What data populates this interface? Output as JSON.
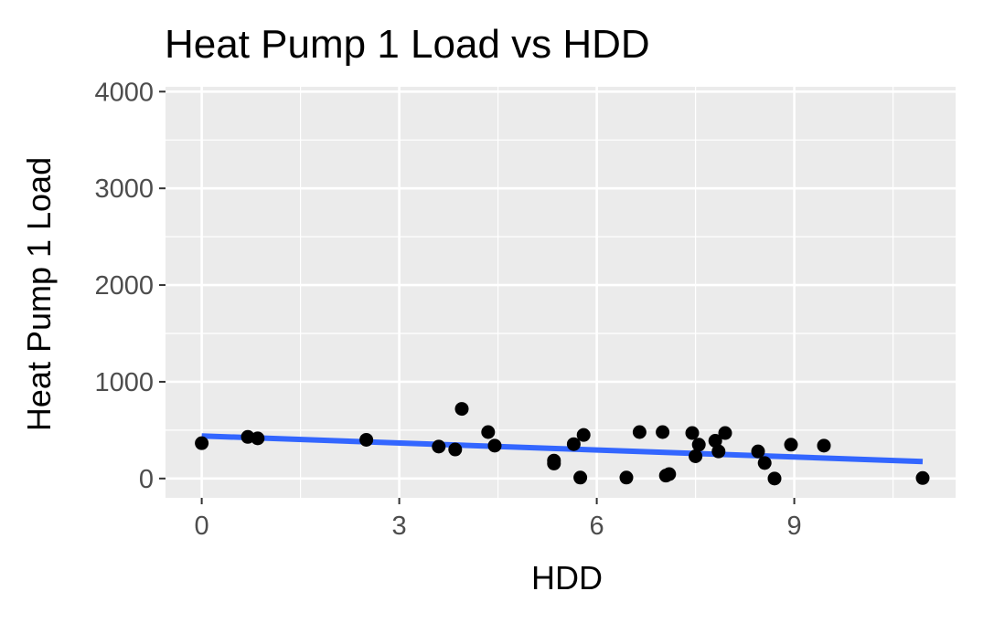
{
  "chart_data": {
    "type": "scatter",
    "title": "Heat Pump 1 Load vs HDD",
    "xlabel": "HDD",
    "ylabel": "Heat Pump 1 Load",
    "xlim": [
      -0.55,
      11.45
    ],
    "ylim": [
      -200,
      4050
    ],
    "x_ticks": [
      0,
      3,
      6,
      9
    ],
    "x_tick_labels": [
      "0",
      "3",
      "6",
      "9"
    ],
    "x_minor_ticks": [
      1.5,
      4.5,
      7.5,
      10.5
    ],
    "y_ticks": [
      0,
      1000,
      2000,
      3000,
      4000
    ],
    "y_tick_labels": [
      "0",
      "1000",
      "2000",
      "3000",
      "4000"
    ],
    "y_minor_ticks": [
      500,
      1500,
      2500,
      3500
    ],
    "grid": true,
    "legend": "none",
    "colors": {
      "panel_background": "#ebebeb",
      "grid_line": "#ffffff",
      "point": "#000000",
      "trend_line": "#3366ff",
      "tick_label": "#4d4d4d",
      "axis_tick": "#333333"
    },
    "points": [
      {
        "x": 0.0,
        "y": 365
      },
      {
        "x": 0.7,
        "y": 430
      },
      {
        "x": 0.85,
        "y": 415
      },
      {
        "x": 2.5,
        "y": 400
      },
      {
        "x": 3.6,
        "y": 330
      },
      {
        "x": 3.85,
        "y": 300
      },
      {
        "x": 3.95,
        "y": 720
      },
      {
        "x": 4.35,
        "y": 480
      },
      {
        "x": 4.45,
        "y": 340
      },
      {
        "x": 5.35,
        "y": 185
      },
      {
        "x": 5.35,
        "y": 155
      },
      {
        "x": 5.65,
        "y": 355
      },
      {
        "x": 5.75,
        "y": 10
      },
      {
        "x": 5.8,
        "y": 450
      },
      {
        "x": 6.45,
        "y": 10
      },
      {
        "x": 6.65,
        "y": 480
      },
      {
        "x": 7.0,
        "y": 480
      },
      {
        "x": 7.05,
        "y": 30
      },
      {
        "x": 7.1,
        "y": 45
      },
      {
        "x": 7.45,
        "y": 470
      },
      {
        "x": 7.5,
        "y": 230
      },
      {
        "x": 7.55,
        "y": 350
      },
      {
        "x": 7.8,
        "y": 390
      },
      {
        "x": 7.85,
        "y": 280
      },
      {
        "x": 7.95,
        "y": 470
      },
      {
        "x": 8.45,
        "y": 280
      },
      {
        "x": 8.55,
        "y": 160
      },
      {
        "x": 8.7,
        "y": 0
      },
      {
        "x": 8.95,
        "y": 350
      },
      {
        "x": 9.45,
        "y": 340
      },
      {
        "x": 10.95,
        "y": 5
      }
    ],
    "trend_line": {
      "x": [
        0.0,
        10.95
      ],
      "y": [
        440,
        175
      ]
    }
  }
}
